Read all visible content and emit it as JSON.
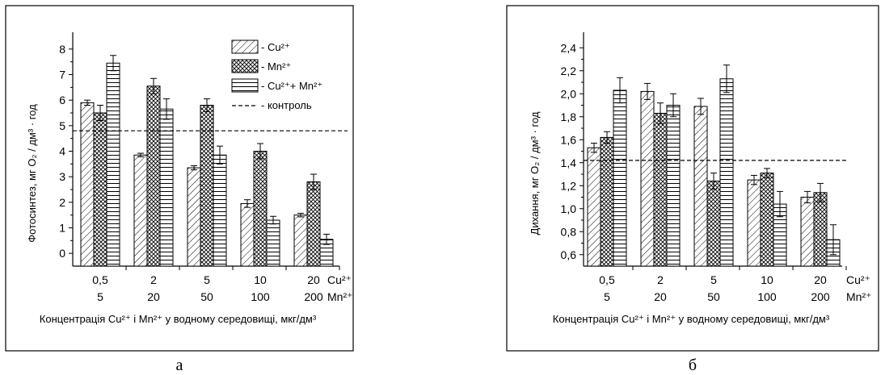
{
  "colors": {
    "ink": "#000000",
    "background": "#ffffff"
  },
  "chart_data": [
    {
      "type": "bar",
      "panel_label": "а",
      "ylabel": "Фотосинтез, мг O₂ / дм³ · год",
      "xlabel": "Концентрація Cu²⁺ і Mn²⁺ у водному середовищі, мкг/дм³",
      "ylim": [
        -0.5,
        8.5
      ],
      "yticks": [
        "0",
        "1",
        "2",
        "3",
        "4",
        "5",
        "6",
        "7",
        "8"
      ],
      "ytick_values": [
        0,
        1,
        2,
        3,
        4,
        5,
        6,
        7,
        8
      ],
      "categories_cu": [
        "0,5",
        "2",
        "5",
        "10",
        "20"
      ],
      "categories_mn": [
        "5",
        "20",
        "50",
        "100",
        "200"
      ],
      "cu_axis_tag": "Cu²⁺",
      "mn_axis_tag": "Mn²⁺",
      "control": 4.8,
      "legend": [
        "- Cu²⁺",
        "- Mn²⁺",
        "- Cu²⁺+ Mn²⁺",
        "- контроль"
      ],
      "legend_placement": "top-right",
      "series": [
        {
          "name": "- Cu²⁺",
          "pattern": "diag",
          "values": [
            5.9,
            3.85,
            3.35,
            1.95,
            1.5
          ],
          "errors": [
            0.1,
            0.07,
            0.08,
            0.15,
            0.07
          ]
        },
        {
          "name": "- Mn²⁺",
          "pattern": "cross",
          "values": [
            5.5,
            6.55,
            5.8,
            4.0,
            2.8
          ],
          "errors": [
            0.3,
            0.3,
            0.25,
            0.3,
            0.3
          ]
        },
        {
          "name": "- Cu²⁺+ Mn²⁺",
          "pattern": "horiz",
          "values": [
            7.45,
            5.65,
            3.85,
            1.3,
            0.55
          ],
          "errors": [
            0.3,
            0.4,
            0.35,
            0.15,
            0.2
          ]
        }
      ]
    },
    {
      "type": "bar",
      "panel_label": "б",
      "ylabel": "Дихання, мг O₂ / дм³ · год",
      "xlabel": "Концентрація Cu²⁺ і Mn²⁺ у водному середовищі, мкг/дм³",
      "ylim": [
        0.5,
        2.5
      ],
      "yticks": [
        "0,6",
        "0,8",
        "1,0",
        "1,2",
        "1,4",
        "1,6",
        "1,8",
        "2,0",
        "2,2",
        "2,4"
      ],
      "ytick_values": [
        0.6,
        0.8,
        1.0,
        1.2,
        1.4,
        1.6,
        1.8,
        2.0,
        2.2,
        2.4
      ],
      "categories_cu": [
        "0,5",
        "2",
        "5",
        "10",
        "20"
      ],
      "categories_mn": [
        "5",
        "20",
        "50",
        "100",
        "200"
      ],
      "cu_axis_tag": "Cu²⁺",
      "mn_axis_tag": "Mn²⁺",
      "control": 1.42,
      "series": [
        {
          "name": "- Cu²⁺",
          "pattern": "diag",
          "values": [
            1.53,
            2.02,
            1.89,
            1.25,
            1.1
          ],
          "errors": [
            0.04,
            0.07,
            0.07,
            0.04,
            0.05
          ]
        },
        {
          "name": "- Mn²⁺",
          "pattern": "cross",
          "values": [
            1.62,
            1.83,
            1.24,
            1.31,
            1.14
          ],
          "errors": [
            0.05,
            0.09,
            0.07,
            0.04,
            0.08
          ]
        },
        {
          "name": "- Cu²⁺+ Mn²⁺",
          "pattern": "horiz",
          "values": [
            2.03,
            1.9,
            2.13,
            1.04,
            0.73
          ],
          "errors": [
            0.11,
            0.1,
            0.12,
            0.11,
            0.13
          ]
        }
      ]
    }
  ]
}
